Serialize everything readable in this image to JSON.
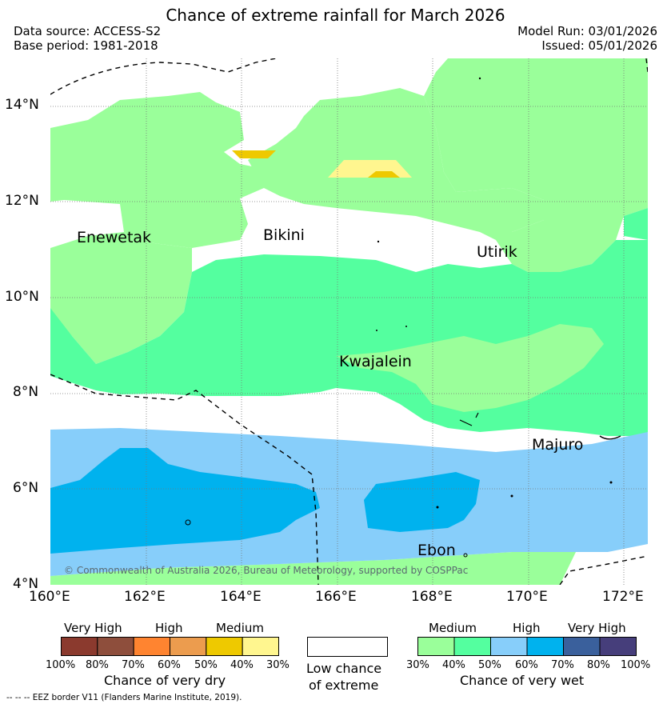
{
  "title": "Chance of extreme rainfall for March 2026",
  "header": {
    "data_source": "Data source: ACCESS-S2",
    "base_period": "Base period: 1981-2018",
    "model_run": "Model Run: 03/01/2026",
    "issued": "Issued: 05/01/2026"
  },
  "axes": {
    "lat_labels": [
      "14°N",
      "12°N",
      "10°N",
      "8°N",
      "6°N",
      "4°N"
    ],
    "lon_labels": [
      "160°E",
      "162°E",
      "164°E",
      "166°E",
      "168°E",
      "170°E",
      "172°E"
    ]
  },
  "places": {
    "enewetak": "Enewetak",
    "bikini": "Bikini",
    "utirik": "Utirik",
    "kwajalein": "Kwajalein",
    "majuro": "Majuro",
    "ebon": "Ebon"
  },
  "copyright": "© Commonwealth of Australia 2026, Bureau of Meteorology, supported by COSPPac",
  "legend": {
    "dry": {
      "levels": [
        "Very High",
        "High",
        "Medium"
      ],
      "ticks": [
        "100%",
        "80%",
        "70%",
        "60%",
        "50%",
        "40%",
        "30%"
      ],
      "colors": [
        "#8b3a2e",
        "#8e4e3c",
        "#ff8430",
        "#ec9c4e",
        "#eec900",
        "#fff68f"
      ],
      "title": "Chance of very dry"
    },
    "low": {
      "line1": "Low chance",
      "line2": "of extreme",
      "color": "#ffffff"
    },
    "wet": {
      "levels": [
        "Medium",
        "High",
        "Very High"
      ],
      "ticks": [
        "30%",
        "40%",
        "50%",
        "60%",
        "70%",
        "80%",
        "100%"
      ],
      "colors": [
        "#9aff9a",
        "#54ff9f",
        "#87cefa",
        "#00b2ee",
        "#3a609c",
        "#463e7b"
      ],
      "title": "Chance of very wet"
    }
  },
  "eez_note": "-- -- -- EEZ border V11 (Flanders Marine Institute, 2019)."
}
